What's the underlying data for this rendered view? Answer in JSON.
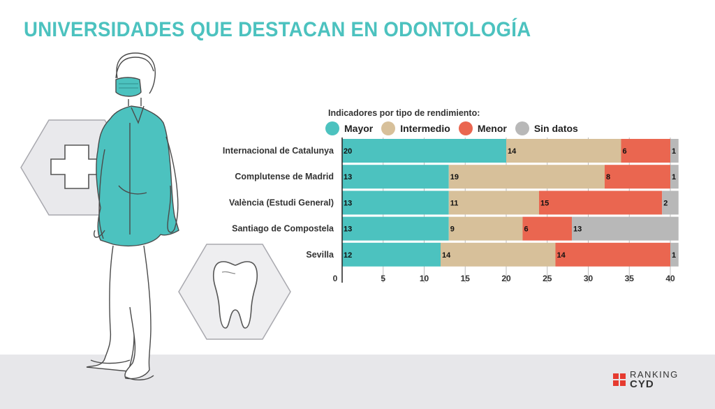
{
  "title": "UNIVERSIDADES QUE DESTACAN EN ODONTOLOGÍA",
  "chart_data": {
    "type": "bar",
    "stacked": true,
    "orientation": "horizontal",
    "subtitle": "Indicadores por tipo de rendimiento:",
    "categories": [
      "Internacional de Catalunya",
      "Complutense de Madrid",
      "València (Estudi General)",
      "Santiago de Compostela",
      "Sevilla"
    ],
    "series": [
      {
        "name": "Mayor",
        "color": "#4cc2bf",
        "values": [
          20,
          13,
          13,
          13,
          12
        ]
      },
      {
        "name": "Intermedio",
        "color": "#d7c09a",
        "values": [
          14,
          19,
          11,
          9,
          14
        ]
      },
      {
        "name": "Menor",
        "color": "#ea6650",
        "values": [
          6,
          8,
          15,
          6,
          14
        ]
      },
      {
        "name": "Sin datos",
        "color": "#b8b8b8",
        "values": [
          1,
          1,
          2,
          13,
          1
        ]
      }
    ],
    "xticks": [
      0,
      5,
      10,
      15,
      20,
      25,
      30,
      35,
      40
    ],
    "xlim": [
      0,
      41
    ],
    "legend_position": "top",
    "grid": true
  },
  "logo": {
    "line1": "RANKING",
    "line2": "CYD"
  }
}
